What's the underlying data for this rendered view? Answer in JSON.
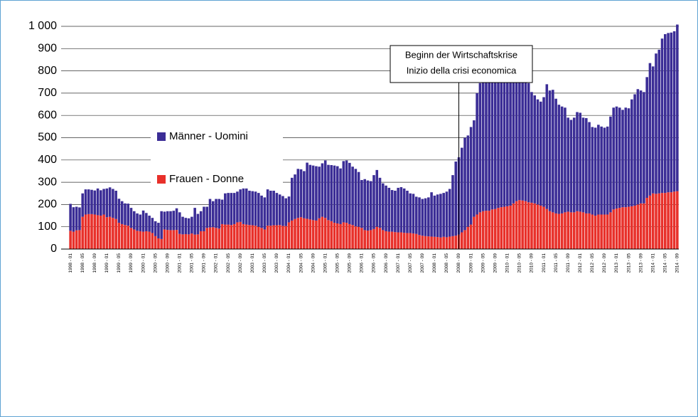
{
  "chart_data": {
    "type": "stacked_bar",
    "categories": [
      "1998 - 01",
      null,
      null,
      null,
      "1998 - 05",
      null,
      null,
      null,
      "1998 - 09",
      null,
      null,
      null,
      "1999 - 01",
      null,
      null,
      null,
      "1999 - 05",
      null,
      null,
      null,
      "1999 - 09",
      null,
      null,
      null,
      "2000 - 01",
      null,
      null,
      null,
      "2000 - 05",
      null,
      null,
      null,
      "2000 - 09",
      null,
      null,
      null,
      "2001 - 01",
      null,
      null,
      null,
      "2001 - 05",
      null,
      null,
      null,
      "2001 - 09",
      null,
      null,
      null,
      "2002 - 01",
      null,
      null,
      null,
      "2002 - 05",
      null,
      null,
      null,
      "2002 - 09",
      null,
      null,
      null,
      "2003 - 01",
      null,
      null,
      null,
      "2003 - 05",
      null,
      null,
      null,
      "2003 - 09",
      null,
      null,
      null,
      "2004 - 01",
      null,
      null,
      null,
      "2004 - 05",
      null,
      null,
      null,
      "2004 - 09",
      null,
      null,
      null,
      "2005 - 01",
      null,
      null,
      null,
      "2005 - 05",
      null,
      null,
      null,
      "2005 - 09",
      null,
      null,
      null,
      "2006 - 01",
      null,
      null,
      null,
      "2006 - 05",
      null,
      null,
      null,
      "2006 - 09",
      null,
      null,
      null,
      "2007 - 01",
      null,
      null,
      null,
      "2007 - 05",
      null,
      null,
      null,
      "2007 - 09",
      null,
      null,
      null,
      "2008 - 01",
      null,
      null,
      null,
      "2008 - 05",
      null,
      null,
      null,
      "2008 - 09",
      null,
      null,
      null,
      "2009 - 01",
      null,
      null,
      null,
      "2009 - 05",
      null,
      null,
      null,
      "2009 - 09",
      null,
      null,
      null,
      "2010 - 01",
      null,
      null,
      null,
      "2010 - 05",
      null,
      null,
      null,
      "2010 - 09",
      null,
      null,
      null,
      "2011 - 01",
      null,
      null,
      null,
      "2011 - 05",
      null,
      null,
      null,
      "2011 - 09",
      null,
      null,
      null,
      "2012 - 01",
      null,
      null,
      null,
      "2012 - 05",
      null,
      null,
      null,
      "2012 - 09",
      null,
      null,
      null,
      "2013 - 01",
      null,
      null,
      null,
      "2013 - 05",
      null,
      null,
      null,
      "2013 - 09",
      null,
      null,
      null,
      "2014 - 01",
      null,
      null,
      null,
      "2014 - 05",
      null,
      null,
      null,
      "2014 - 09"
    ],
    "series": [
      {
        "name": "Männer - Uomini",
        "color": "#3b2d96",
        "values": [
          121,
          110,
          106,
          102,
          105,
          113,
          111,
          109,
          108,
          120,
          114,
          115,
          129,
          132,
          130,
          127,
          108,
          103,
          97,
          99,
          90,
          82,
          78,
          75,
          95,
          82,
          72,
          68,
          67,
          70,
          125,
          80,
          84,
          85,
          87,
          97,
          97,
          79,
          73,
          72,
          75,
          120,
          92,
          90,
          110,
          95,
          128,
          117,
          130,
          133,
          110,
          140,
          142,
          144,
          140,
          138,
          146,
          160,
          162,
          154,
          153,
          153,
          152,
          145,
          144,
          163,
          157,
          155,
          145,
          137,
          134,
          125,
          116,
          192,
          200,
          220,
          215,
          212,
          252,
          245,
          245,
          244,
          232,
          240,
          258,
          248,
          252,
          257,
          257,
          250,
          275,
          280,
          275,
          262,
          258,
          246,
          215,
          229,
          225,
          220,
          242,
          255,
          225,
          210,
          205,
          197,
          187,
          186,
          200,
          203,
          199,
          190,
          178,
          178,
          167,
          169,
          165,
          170,
          175,
          199,
          185,
          191,
          196,
          197,
          205,
          214,
          274,
          333,
          347,
          380,
          415,
          410,
          438,
          433,
          545,
          580,
          615,
          618,
          613,
          614,
          598,
          583,
          587,
          575,
          583,
          575,
          560,
          550,
          567,
          554,
          540,
          535,
          497,
          485,
          472,
          467,
          492,
          560,
          542,
          550,
          515,
          490,
          480,
          470,
          422,
          415,
          425,
          445,
          444,
          425,
          428,
          410,
          393,
          395,
          403,
          395,
          390,
          395,
          430,
          457,
          458,
          450,
          437,
          447,
          442,
          480,
          500,
          518,
          507,
          500,
          542,
          595,
          570,
          630,
          645,
          693,
          713,
          715,
          717,
          720,
          748
        ]
      },
      {
        "name": "Frauen - Donne",
        "color": "#e8302a",
        "values": [
          82,
          78,
          84,
          85,
          145,
          155,
          157,
          157,
          155,
          152,
          150,
          155,
          143,
          145,
          140,
          135,
          118,
          112,
          108,
          105,
          95,
          88,
          82,
          80,
          78,
          80,
          78,
          72,
          58,
          48,
          45,
          88,
          86,
          85,
          85,
          86,
          68,
          66,
          67,
          66,
          70,
          65,
          66,
          80,
          80,
          95,
          97,
          98,
          95,
          92,
          112,
          110,
          110,
          108,
          112,
          120,
          122,
          112,
          110,
          108,
          107,
          105,
          100,
          95,
          88,
          105,
          105,
          107,
          107,
          108,
          104,
          103,
          120,
          128,
          135,
          140,
          143,
          138,
          136,
          133,
          130,
          128,
          138,
          145,
          140,
          130,
          125,
          118,
          115,
          112,
          120,
          118,
          112,
          108,
          102,
          100,
          95,
          85,
          83,
          85,
          90,
          100,
          95,
          85,
          80,
          78,
          78,
          76,
          75,
          75,
          73,
          72,
          72,
          70,
          68,
          63,
          60,
          58,
          57,
          56,
          55,
          54,
          52,
          55,
          53,
          56,
          58,
          60,
          65,
          75,
          85,
          100,
          110,
          145,
          155,
          165,
          170,
          172,
          172,
          178,
          180,
          185,
          188,
          190,
          192,
          195,
          205,
          215,
          220,
          218,
          215,
          210,
          208,
          205,
          200,
          195,
          190,
          180,
          170,
          165,
          160,
          158,
          160,
          165,
          168,
          165,
          165,
          170,
          168,
          165,
          160,
          160,
          155,
          150,
          155,
          155,
          155,
          155,
          165,
          178,
          182,
          185,
          188,
          188,
          190,
          192,
          195,
          200,
          205,
          205,
          230,
          240,
          250,
          248,
          250,
          252,
          252,
          255,
          255,
          258,
          260
        ]
      }
    ],
    "ylim": [
      0,
      1000
    ],
    "yticks": [
      0,
      100,
      200,
      300,
      400,
      500,
      600,
      700,
      800,
      900,
      {
        "value": 1000,
        "label": "1 000"
      }
    ],
    "grid": true,
    "annotation": {
      "x": "2008 - 09",
      "lines": [
        "Beginn der Wirtschaftskrise",
        "Inizio della crisi economica"
      ]
    }
  }
}
